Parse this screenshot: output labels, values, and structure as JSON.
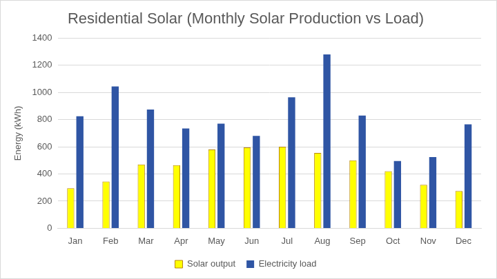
{
  "chart_data": {
    "type": "bar",
    "title": "Residential Solar (Monthly Solar Production vs Load)",
    "y_label": "Energy (kWh)",
    "categories": [
      "Jan",
      "Feb",
      "Mar",
      "Apr",
      "May",
      "Jun",
      "Jul",
      "Aug",
      "Sep",
      "Oct",
      "Nov",
      "Dec"
    ],
    "series": [
      {
        "name": "Solar output",
        "color": "#ffff00",
        "values": [
          295,
          345,
          470,
          465,
          580,
          595,
          600,
          555,
          500,
          420,
          320,
          275
        ]
      },
      {
        "name": "Electricity load",
        "color": "#2f55a4",
        "values": [
          825,
          1045,
          875,
          735,
          770,
          680,
          965,
          1280,
          830,
          495,
          525,
          765
        ]
      }
    ],
    "ylim": [
      0,
      1400
    ],
    "yticks": [
      0,
      200,
      400,
      600,
      800,
      1000,
      1200,
      1400
    ],
    "grid": true,
    "legend": "bottom"
  }
}
